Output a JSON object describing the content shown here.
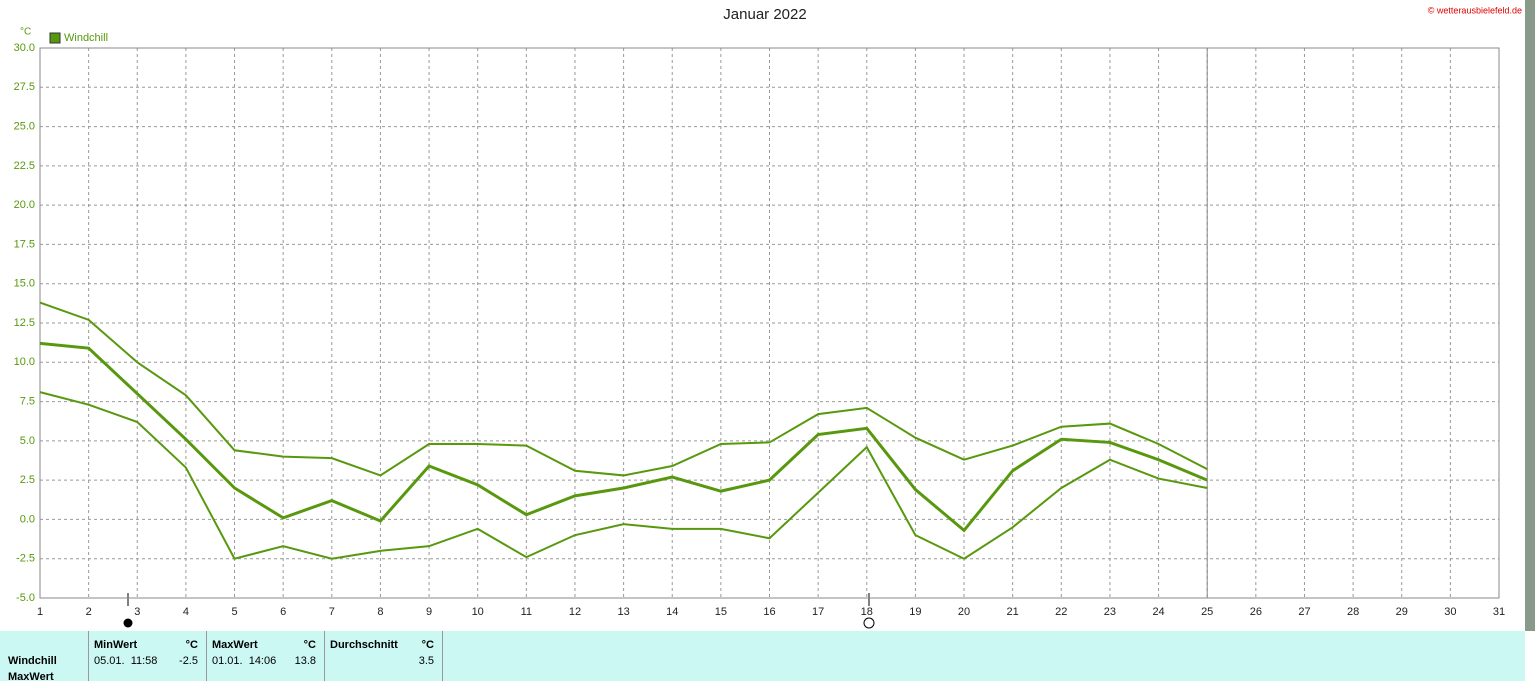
{
  "chart_data": {
    "type": "line",
    "title": "Januar 2022",
    "y_label": "°C",
    "copyright": "© wetterausbielefeld.de",
    "x": [
      1,
      2,
      3,
      4,
      5,
      6,
      7,
      8,
      9,
      10,
      11,
      12,
      13,
      14,
      15,
      16,
      17,
      18,
      19,
      20,
      21,
      22,
      23,
      24,
      25
    ],
    "series": [
      {
        "name": "Windchill",
        "color": "#58980e",
        "values": [
          11.2,
          10.9,
          8.0,
          5.1,
          2.0,
          0.1,
          1.2,
          -0.1,
          3.4,
          2.2,
          0.3,
          1.5,
          2.0,
          2.7,
          1.8,
          2.5,
          5.4,
          5.8,
          1.9,
          -0.7,
          3.1,
          5.1,
          4.9,
          3.8,
          2.5
        ]
      },
      {
        "color": "#58980e",
        "values": [
          13.8,
          12.7,
          10.0,
          7.9,
          4.4,
          4.0,
          3.9,
          2.8,
          4.8,
          4.8,
          4.7,
          3.1,
          2.8,
          3.4,
          4.8,
          4.9,
          6.7,
          7.1,
          5.2,
          3.8,
          4.7,
          5.9,
          6.1,
          4.8,
          3.2
        ]
      },
      {
        "color": "#58980e",
        "values": [
          8.1,
          7.3,
          6.2,
          3.3,
          -2.5,
          -1.7,
          -2.5,
          -2.0,
          -1.7,
          -0.6,
          -2.4,
          -1.0,
          -0.3,
          -0.6,
          -0.6,
          -1.2,
          1.7,
          4.6,
          -1.0,
          -2.5,
          -0.5,
          2.0,
          3.8,
          2.6,
          2.0
        ]
      }
    ],
    "xlim": [
      1,
      31
    ],
    "xticks": [
      1,
      2,
      3,
      4,
      5,
      6,
      7,
      8,
      9,
      10,
      11,
      12,
      13,
      14,
      15,
      16,
      17,
      18,
      19,
      20,
      21,
      22,
      23,
      24,
      25,
      26,
      27,
      28,
      29,
      30,
      31
    ],
    "ylim": [
      -5,
      30
    ],
    "yticks": [
      {
        "value": 30,
        "label": "30.0"
      },
      {
        "value": 27.5,
        "label": "27.5"
      },
      {
        "value": 25,
        "label": "25.0"
      },
      {
        "value": 22.5,
        "label": "22.5"
      },
      {
        "value": 20,
        "label": "20.0"
      },
      {
        "value": 17.5,
        "label": "17.5"
      },
      {
        "value": 15,
        "label": "15.0"
      },
      {
        "value": 12.5,
        "label": "12.5"
      },
      {
        "value": 10,
        "label": "10.0"
      },
      {
        "value": 7.5,
        "label": "7.5"
      },
      {
        "value": 5,
        "label": "5.0"
      },
      {
        "value": 2.5,
        "label": "2.5"
      },
      {
        "value": 0,
        "label": "0.0"
      },
      {
        "value": -2.5,
        "label": "-2.5"
      },
      {
        "value": -5,
        "label": "-5.0"
      }
    ],
    "grid": true,
    "legend": "top-left"
  },
  "table": {
    "columns": [
      {
        "title": "MinWert",
        "unit": "°C"
      },
      {
        "title": "MaxWert",
        "unit": "°C"
      },
      {
        "title": "Durchschnitt",
        "unit": "°C"
      }
    ],
    "rows": [
      {
        "label": "Windchill",
        "cells": [
          {
            "time": "05.01.  11:58",
            "value": -2.5
          },
          {
            "time": "01.01.  14:06",
            "value": 13.8
          },
          {
            "value": 3.5
          }
        ]
      },
      {
        "label": "MaxWert"
      }
    ]
  }
}
